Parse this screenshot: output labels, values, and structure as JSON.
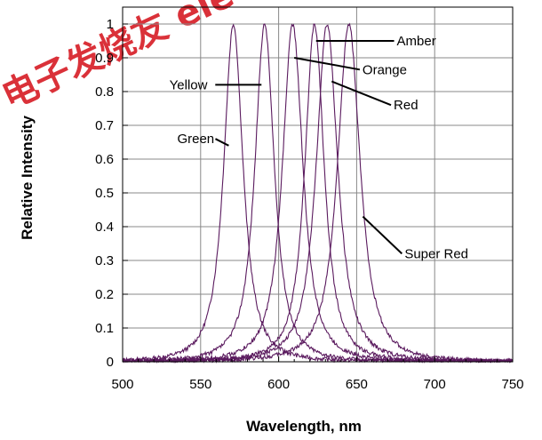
{
  "watermark": {
    "text": "电子发烧友 elecfans.com.cn",
    "color": "#d61b24"
  },
  "chart_data": {
    "type": "line",
    "title": "",
    "xlabel": "Wavelength, nm",
    "ylabel": "Relative Intensity",
    "xlim": [
      500,
      750
    ],
    "ylim": [
      0,
      1.05
    ],
    "x_ticks": [
      "500",
      "550",
      "600",
      "650",
      "700",
      "750"
    ],
    "y_ticks": [
      "0",
      "0.1",
      "0.2",
      "0.3",
      "0.4",
      "0.5",
      "0.6",
      "0.7",
      "0.8",
      "0.9",
      "1"
    ],
    "grid": true,
    "line_color": "#5a1a5e",
    "series": [
      {
        "name": "Green",
        "peak": 571,
        "fwhm": 17,
        "label_point": [
          568,
          0.64
        ],
        "label_pos": [
          535,
          0.66
        ]
      },
      {
        "name": "Yellow",
        "peak": 591,
        "fwhm": 17,
        "label_point": [
          589,
          0.82
        ],
        "label_pos": [
          530,
          0.82
        ]
      },
      {
        "name": "Orange",
        "peak": 609,
        "fwhm": 18,
        "label_point": [
          610,
          0.9
        ],
        "label_pos": [
          652,
          0.865
        ]
      },
      {
        "name": "Amber",
        "peak": 623,
        "fwhm": 17,
        "label_point": [
          624,
          0.95
        ],
        "label_pos": [
          674,
          0.95
        ]
      },
      {
        "name": "Red",
        "peak": 631,
        "fwhm": 19,
        "label_point": [
          634,
          0.83
        ],
        "label_pos": [
          672,
          0.76
        ]
      },
      {
        "name": "Super Red",
        "peak": 645,
        "fwhm": 20,
        "label_point": [
          654,
          0.43
        ],
        "label_pos": [
          679,
          0.32
        ]
      }
    ]
  }
}
